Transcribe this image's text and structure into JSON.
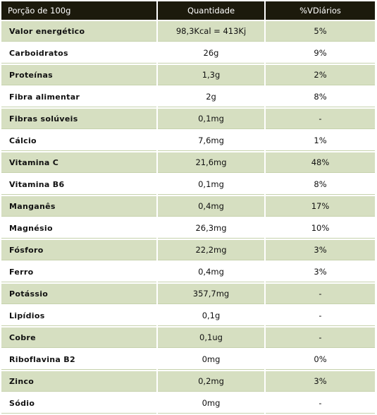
{
  "header": {
    "col_name": "Porção de 100g",
    "col_quantity": "Quantidade",
    "col_daily": "%VDiários"
  },
  "rows": [
    {
      "name": "Valor energético",
      "quantity": "98,3Kcal = 413Kj",
      "daily": "5%"
    },
    {
      "name": "Carboidratos",
      "quantity": "26g",
      "daily": "9%"
    },
    {
      "name": "Proteínas",
      "quantity": "1,3g",
      "daily": "2%"
    },
    {
      "name": "Fibra alimentar",
      "quantity": "2g",
      "daily": "8%"
    },
    {
      "name": "Fibras solúveis",
      "quantity": "0,1mg",
      "daily": "-"
    },
    {
      "name": "Cálcio",
      "quantity": "7,6mg",
      "daily": "1%"
    },
    {
      "name": "Vitamina C",
      "quantity": "21,6mg",
      "daily": "48%"
    },
    {
      "name": "Vitamina B6",
      "quantity": "0,1mg",
      "daily": "8%"
    },
    {
      "name": "Manganês",
      "quantity": "0,4mg",
      "daily": "17%"
    },
    {
      "name": "Magnésio",
      "quantity": "26,3mg",
      "daily": "10%"
    },
    {
      "name": "Fósforo",
      "quantity": "22,2mg",
      "daily": "3%"
    },
    {
      "name": "Ferro",
      "quantity": "0,4mg",
      "daily": "3%"
    },
    {
      "name": "Potássio",
      "quantity": "357,7mg",
      "daily": "-"
    },
    {
      "name": "Lipídios",
      "quantity": "0,1g",
      "daily": "-"
    },
    {
      "name": "Cobre",
      "quantity": "0,1ug",
      "daily": "-"
    },
    {
      "name": "Riboflavina B2",
      "quantity": "0mg",
      "daily": "0%"
    },
    {
      "name": "Zinco",
      "quantity": "0,2mg",
      "daily": "3%"
    },
    {
      "name": "Sódio",
      "quantity": "0mg",
      "daily": "-"
    }
  ],
  "colors": {
    "header_bg": "#1c1a0c",
    "shaded_row": "#d6dfc1",
    "plain_row": "#ffffff"
  }
}
